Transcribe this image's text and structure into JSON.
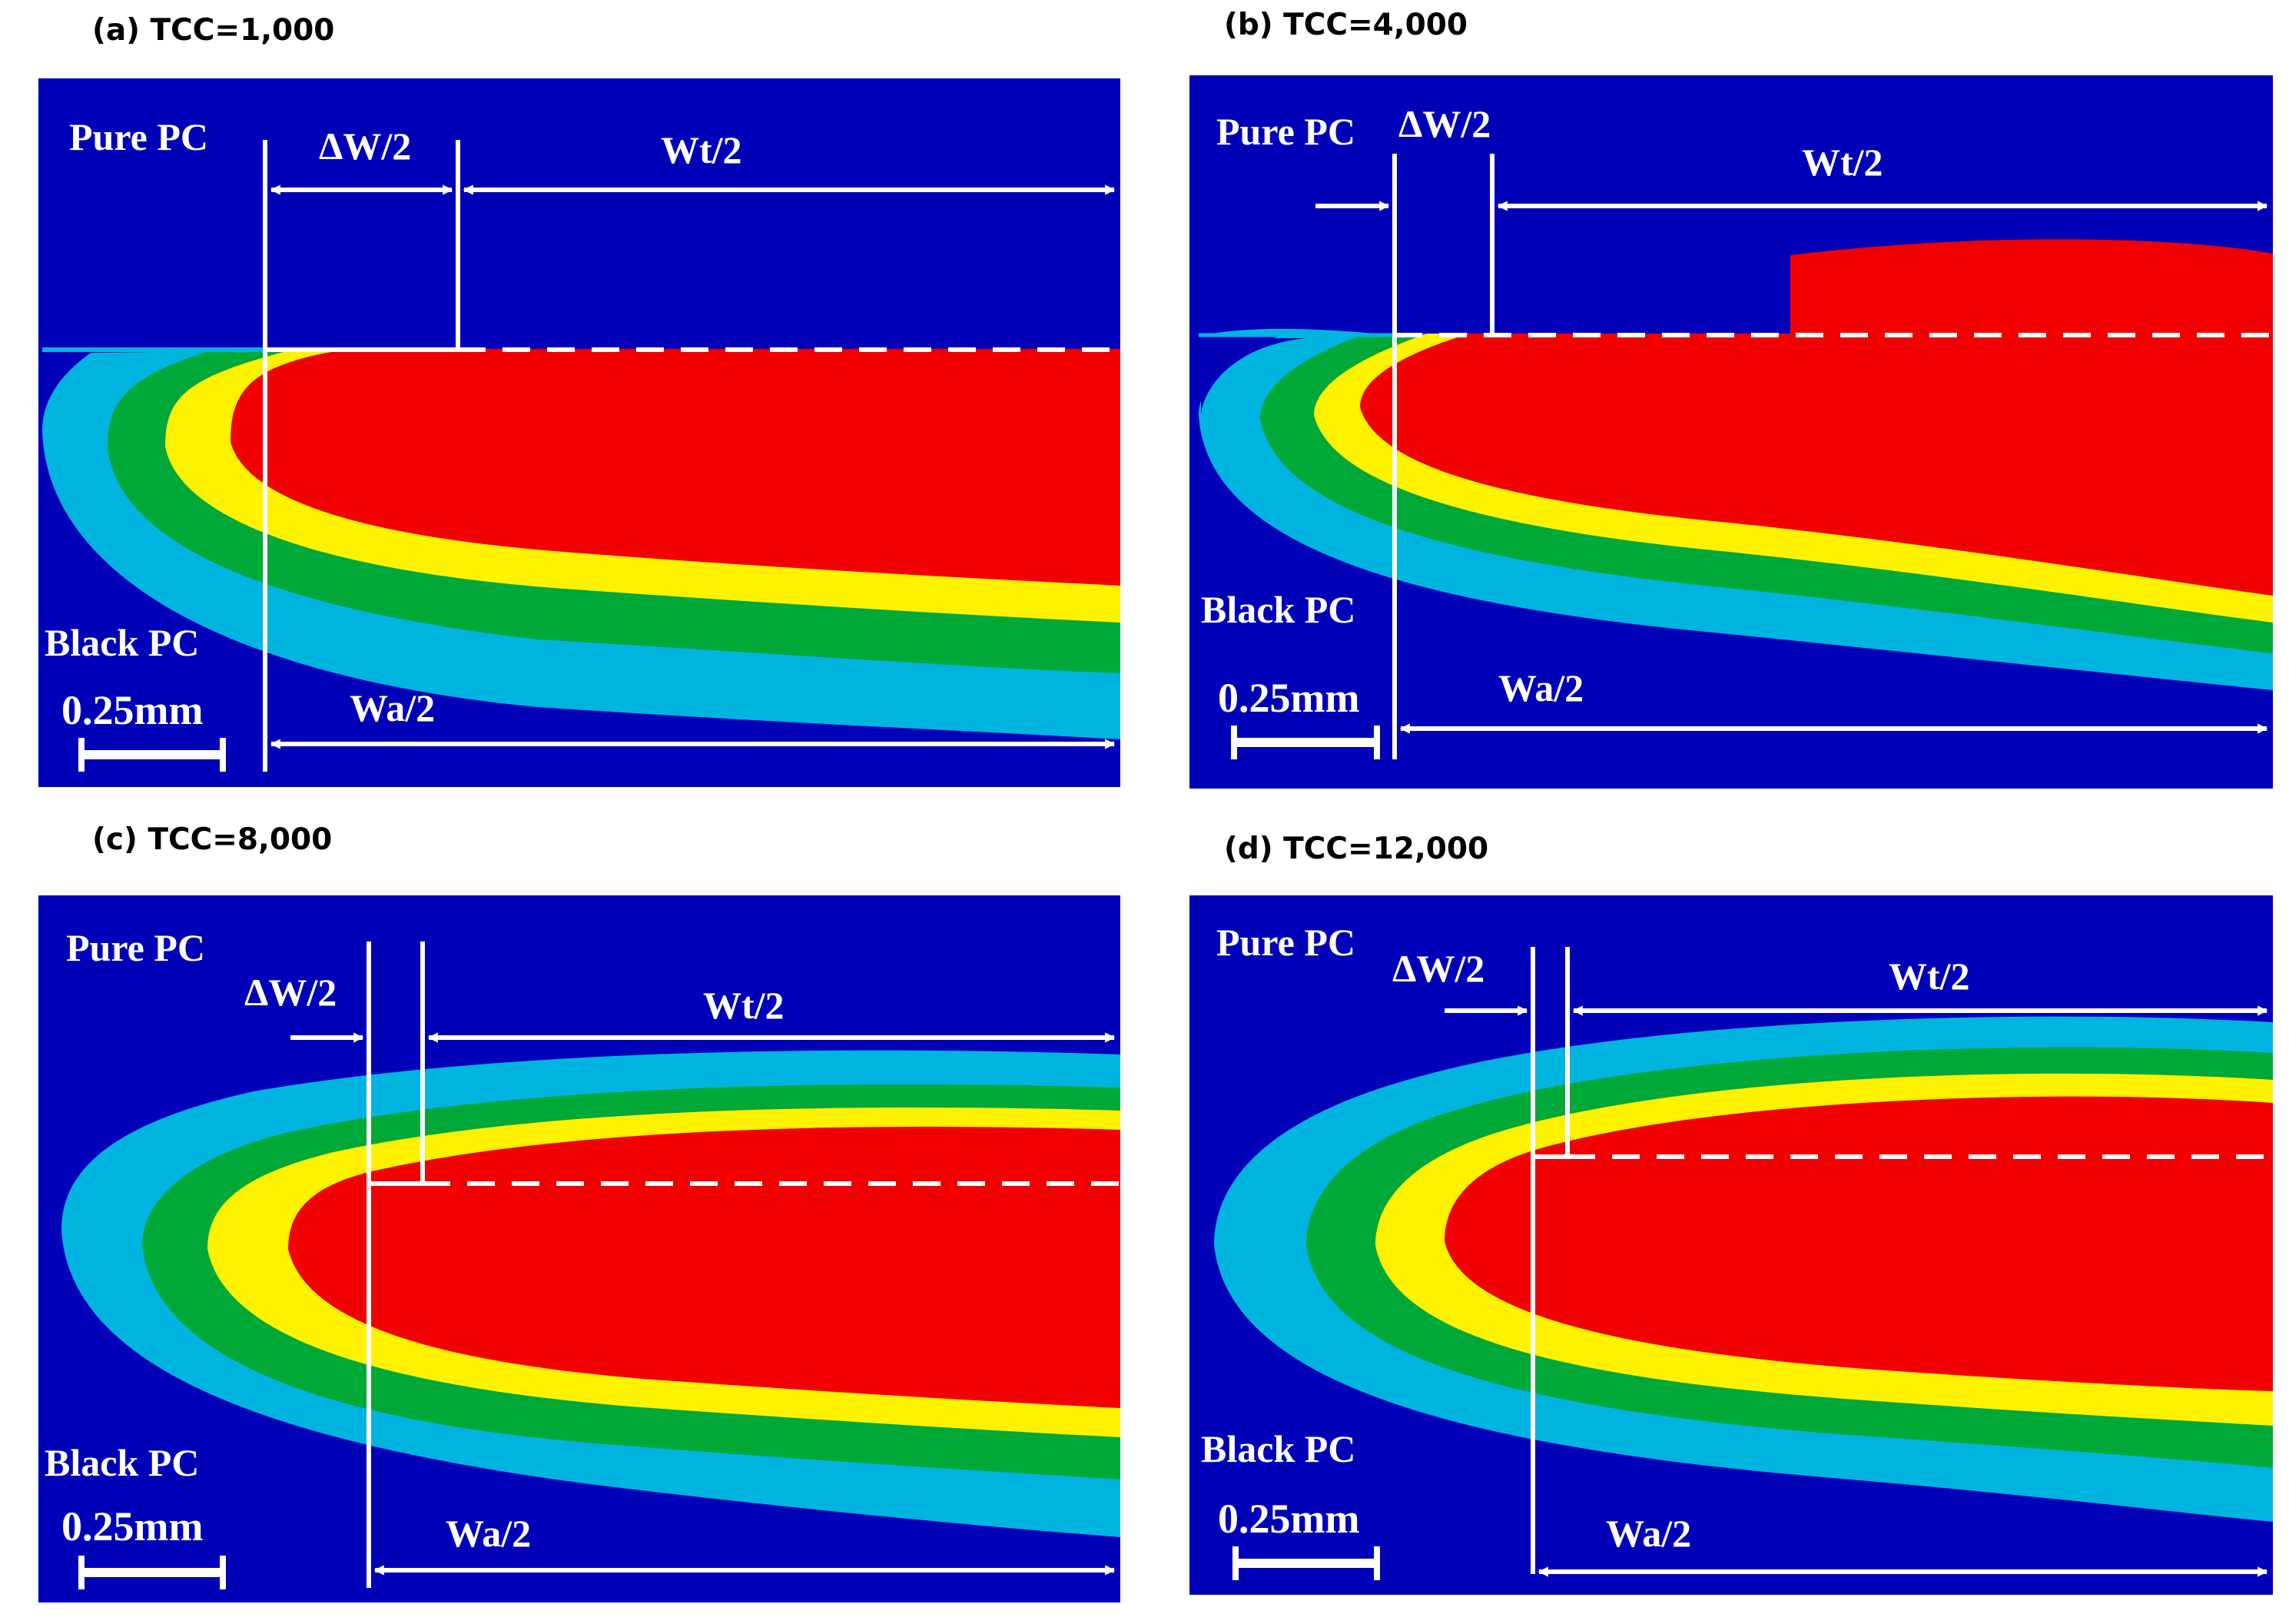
{
  "colors": {
    "background": "#0000b8",
    "cyan_band": "#00b4e0",
    "green_band": "#00a838",
    "yellow_band": "#fff200",
    "red_core": "#f00000",
    "annotation": "#ffffff"
  },
  "panels": [
    {
      "caption": "(a) TCC=1,000",
      "pure_label": "Pure PC",
      "black_label": "Black PC",
      "scale_label": "0.25mm",
      "dw_label": "ΔW/2",
      "wt_label": "Wt/2",
      "wa_label": "Wa/2"
    },
    {
      "caption": "(b) TCC=4,000",
      "pure_label": "Pure PC",
      "black_label": "Black PC",
      "scale_label": "0.25mm",
      "dw_label": "ΔW/2",
      "wt_label": "Wt/2",
      "wa_label": "Wa/2"
    },
    {
      "caption": "(c) TCC=8,000",
      "pure_label": "Pure PC",
      "black_label": "Black PC",
      "scale_label": "0.25mm",
      "dw_label": "ΔW/2",
      "wt_label": "Wt/2",
      "wa_label": "Wa/2"
    },
    {
      "caption": "(d) TCC=12,000",
      "pure_label": "Pure PC",
      "black_label": "Black PC",
      "scale_label": "0.25mm",
      "dw_label": "ΔW/2",
      "wt_label": "Wt/2",
      "wa_label": "Wa/2"
    }
  ]
}
